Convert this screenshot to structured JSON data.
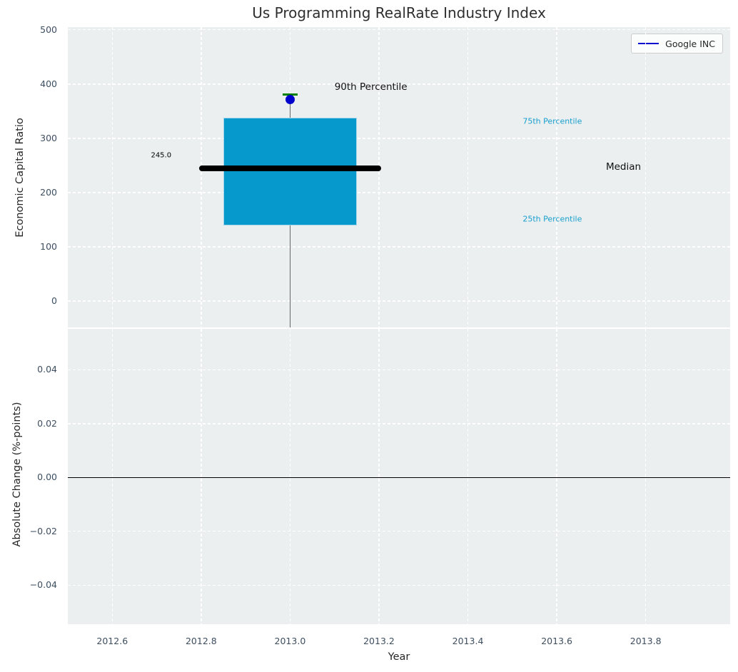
{
  "colors": {
    "figure_bg": "#ffffff",
    "axes_bg": "#ebeff0",
    "grid": "#ffffff",
    "tick_label": "#3d4e60",
    "text": "#262626",
    "box_fill": "#0599cc",
    "box_edge": "#9fd4ea",
    "median_line": "#000000",
    "whisker": "#666666",
    "whisker_cap": "#008000",
    "marker": "#0000cc",
    "percentile_label": "#189fce",
    "zero_line": "#000000"
  },
  "chart_data": [
    {
      "type": "boxplot",
      "title": "Us Programming RealRate Industry Index",
      "ylabel": "Economic Capital Ratio",
      "xlim": [
        2012.5,
        2013.99
      ],
      "ylim": [
        -48.5,
        505
      ],
      "grid": true,
      "yticks": [
        {
          "v": 0,
          "label": "0"
        },
        {
          "v": 100,
          "label": "100"
        },
        {
          "v": 200,
          "label": "200"
        },
        {
          "v": 300,
          "label": "300"
        },
        {
          "v": 400,
          "label": "400"
        },
        {
          "v": 500,
          "label": "500"
        }
      ],
      "legend": {
        "label": "Google INC",
        "color": "#0000cc",
        "position": "upper right"
      },
      "box": {
        "x_left": 2012.85,
        "x_right": 2013.15,
        "q1": 140,
        "q3": 338,
        "median": 245,
        "median_x_left": 2012.795,
        "median_x_right": 2013.205,
        "p90": 381,
        "marker_value": 372,
        "whisker_x": 2013.0,
        "whisker_top": 381,
        "whisker_bottom": -48.5
      },
      "annotations": [
        {
          "text": "245.0",
          "x": 2012.71,
          "y": 268,
          "color": "#000000",
          "size": 10,
          "anchor": "middle"
        },
        {
          "text": "90th Percentile",
          "x": 2013.1,
          "y": 394,
          "color": "#111111",
          "size": 13.5,
          "anchor": "start"
        },
        {
          "text": "75th Percentile",
          "x": 2013.59,
          "y": 331,
          "color": "#189fce",
          "size": 11,
          "anchor": "middle"
        },
        {
          "text": "Median",
          "x": 2013.75,
          "y": 247,
          "color": "#111111",
          "size": 13.5,
          "anchor": "middle"
        },
        {
          "text": "25th Percentile",
          "x": 2013.59,
          "y": 151,
          "color": "#189fce",
          "size": 11,
          "anchor": "middle"
        }
      ]
    },
    {
      "type": "line",
      "ylabel": "Absolute Change (%-points)",
      "xlabel": "Year",
      "xlim": [
        2012.5,
        2013.99
      ],
      "ylim": [
        -0.0545,
        0.0552
      ],
      "grid": true,
      "yticks": [
        {
          "v": 0.04,
          "label": "0.04"
        },
        {
          "v": 0.02,
          "label": "0.02"
        },
        {
          "v": 0.0,
          "label": "0.00"
        },
        {
          "v": -0.02,
          "label": "−0.02"
        },
        {
          "v": -0.04,
          "label": "−0.04"
        }
      ],
      "xticks": [
        {
          "v": 2012.6,
          "label": "2012.6"
        },
        {
          "v": 2012.8,
          "label": "2012.8"
        },
        {
          "v": 2013.0,
          "label": "2013.0"
        },
        {
          "v": 2013.2,
          "label": "2013.2"
        },
        {
          "v": 2013.4,
          "label": "2013.4"
        },
        {
          "v": 2013.6,
          "label": "2013.6"
        },
        {
          "v": 2013.8,
          "label": "2013.8"
        }
      ],
      "zero_line": 0.0
    }
  ]
}
